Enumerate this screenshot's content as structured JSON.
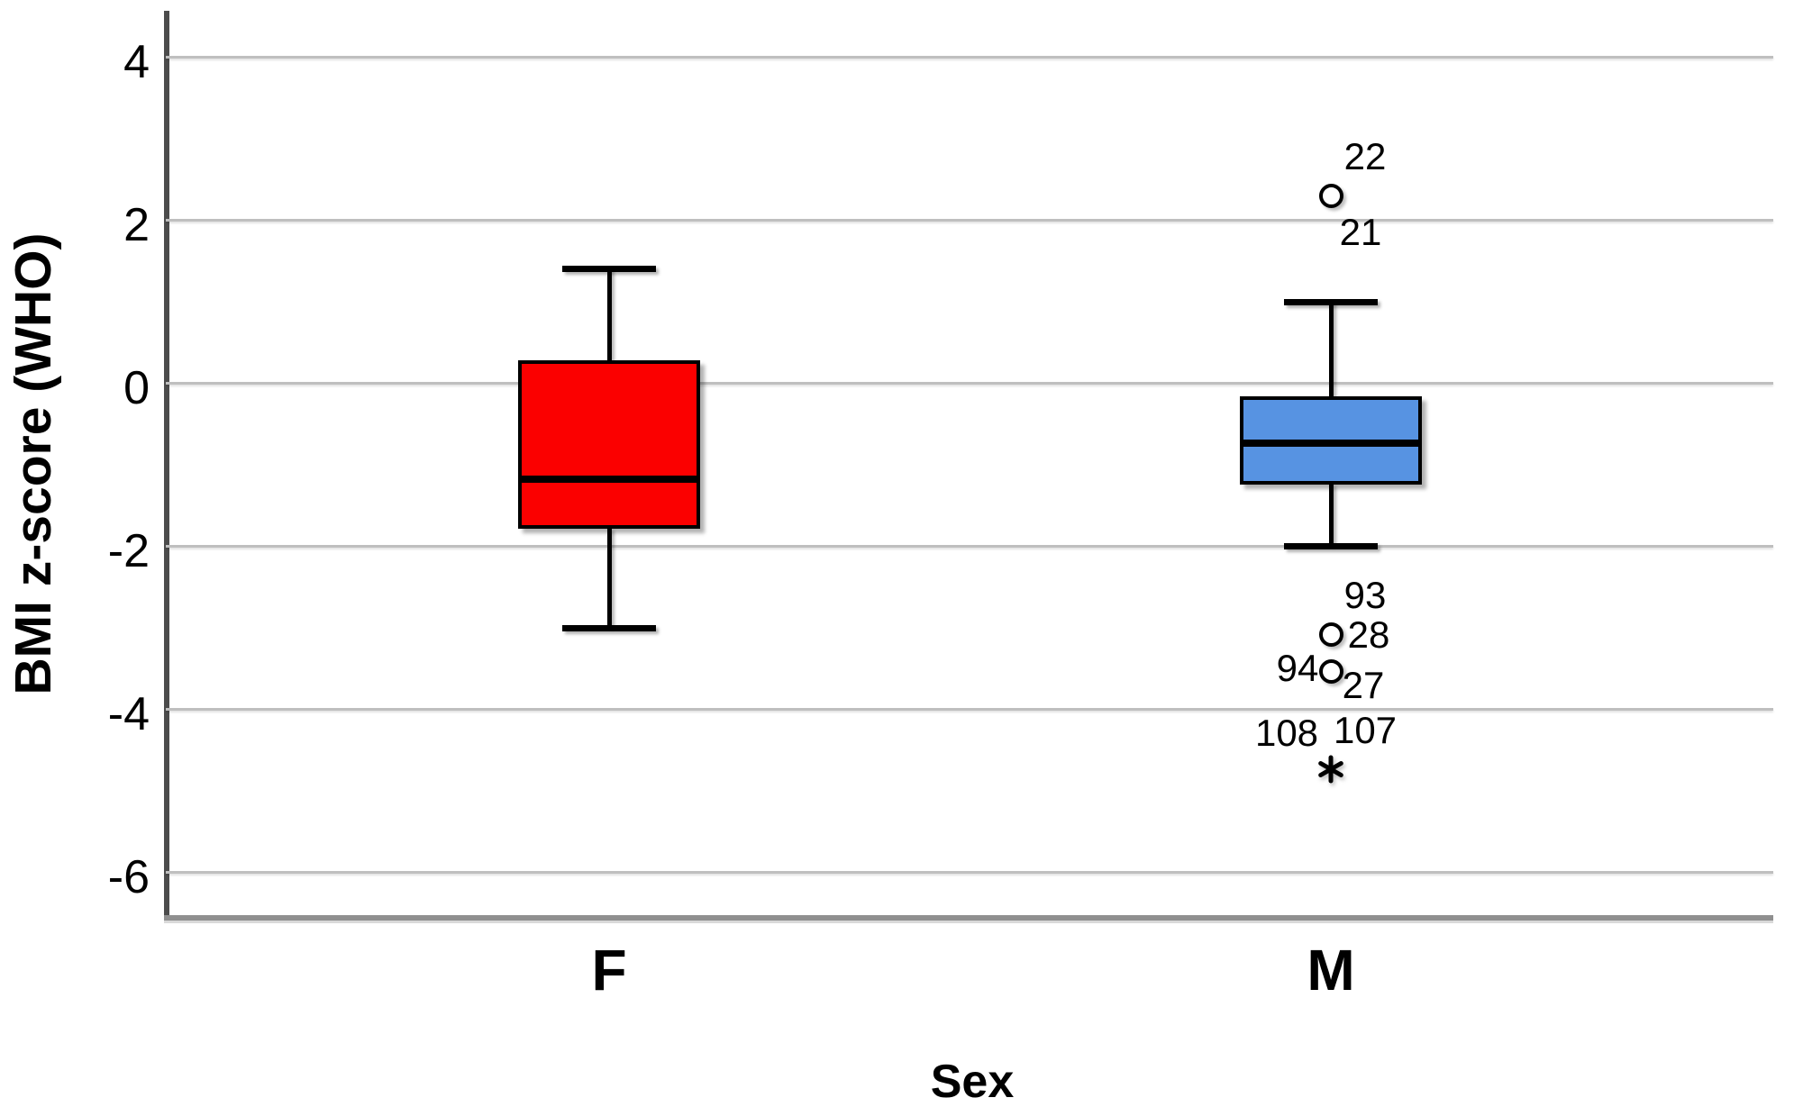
{
  "chart_data": {
    "type": "boxplot",
    "title": "",
    "xlabel": "Sex",
    "ylabel": "BMI z-score (WHO)",
    "categories": [
      "F",
      "M"
    ],
    "y_ticks": [
      4,
      2,
      0,
      -2,
      -4,
      -6
    ],
    "ylim": [
      -6.6,
      4.6
    ],
    "grid": true,
    "legend": false,
    "series": [
      {
        "category": "F",
        "box_color": "#fb0000",
        "whisker_low": -3.0,
        "q1": -1.79,
        "median": -1.18,
        "q3": 0.28,
        "whisker_high": 1.4,
        "outliers": []
      },
      {
        "category": "M",
        "box_color": "#5793e2",
        "whisker_low": -2.0,
        "q1": -1.24,
        "median": -0.73,
        "q3": -0.16,
        "whisker_high": 1.0,
        "outliers": [
          {
            "value": 2.3,
            "marker": "circle",
            "case_labels": [
              {
                "text": "22",
                "placement": "above-right"
              },
              {
                "text": "21",
                "placement": "below-right"
              }
            ]
          },
          {
            "value": -3.08,
            "marker": "circle",
            "case_labels": [
              {
                "text": "93",
                "placement": "above-right"
              },
              {
                "text": "28",
                "placement": "right"
              }
            ]
          },
          {
            "value": -3.54,
            "marker": "circle",
            "case_labels": [
              {
                "text": "94",
                "placement": "left"
              },
              {
                "text": "27",
                "placement": "below-right-near"
              }
            ]
          },
          {
            "value": -4.73,
            "marker": "asterisk",
            "case_labels": [
              {
                "text": "108",
                "placement": "above-left"
              },
              {
                "text": "107",
                "placement": "above-right"
              }
            ]
          }
        ]
      }
    ]
  }
}
